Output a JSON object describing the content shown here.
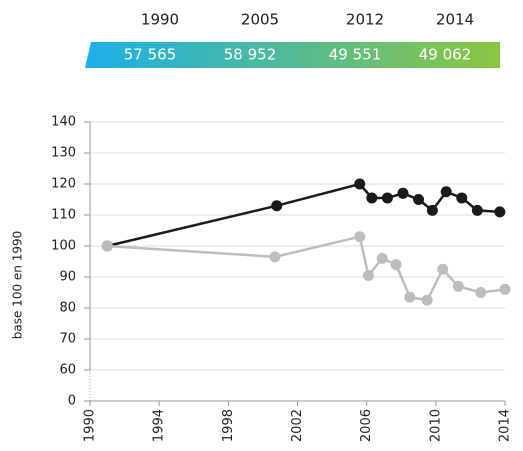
{
  "chart_data": {
    "type": "line",
    "header_years": [
      "1990",
      "2005",
      "2012",
      "2014"
    ],
    "header_values": [
      "57 565",
      "58 952",
      "49 551",
      "49 062"
    ],
    "header_colors": [
      "#1ab0e8",
      "#8cc63f"
    ],
    "ylabel": "base 100 en 1990",
    "xlim": [
      1990,
      2014
    ],
    "xticks": [
      1990,
      1994,
      1998,
      2002,
      2006,
      2010,
      2014
    ],
    "ylim": [
      0,
      140
    ],
    "yticks": [
      0,
      60,
      70,
      80,
      90,
      100,
      110,
      120,
      130,
      140
    ],
    "axis_break": true,
    "grid": true,
    "series": [
      {
        "name": null,
        "color": "#1a1a1a",
        "x": [
          1991,
          2000.8,
          2005.6,
          2006.3,
          2007.2,
          2008.1,
          2009,
          2009.8,
          2010.6,
          2011.5,
          2012.4,
          2013.7
        ],
        "values": [
          100,
          113,
          120,
          115.5,
          115.5,
          117,
          115,
          111.5,
          117.5,
          115.5,
          111.5,
          111
        ]
      },
      {
        "name": null,
        "color": "#bdbdbd",
        "x": [
          1991,
          2000.7,
          2005.6,
          2006.1,
          2006.9,
          2007.7,
          2008.5,
          2009.5,
          2010.4,
          2011.3,
          2012.6,
          2014
        ],
        "values": [
          100,
          96.5,
          103,
          90.5,
          96,
          94,
          83.5,
          82.5,
          92.5,
          87,
          85,
          86
        ]
      }
    ]
  }
}
